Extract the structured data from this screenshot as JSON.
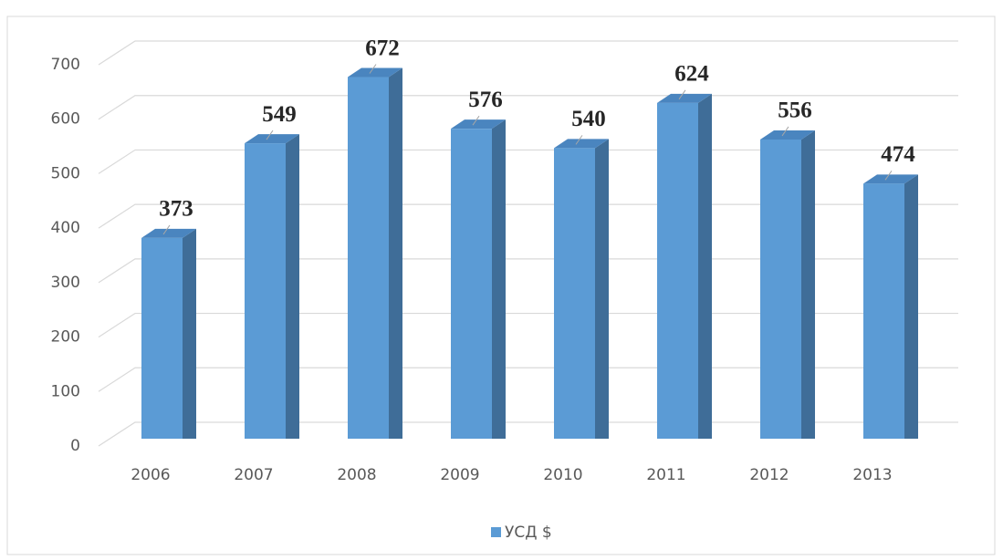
{
  "chart_data": {
    "type": "bar",
    "categories": [
      "2006",
      "2007",
      "2008",
      "2009",
      "2010",
      "2011",
      "2012",
      "2013"
    ],
    "series": [
      {
        "name": "УСД $",
        "color": "#5b9bd5",
        "values": [
          373,
          549,
          672,
          576,
          540,
          624,
          556,
          474
        ]
      }
    ],
    "ylim": [
      0,
      700
    ],
    "yticks": [
      0,
      100,
      200,
      300,
      400,
      500,
      600,
      700
    ],
    "grid": true,
    "legend": "bottom"
  }
}
